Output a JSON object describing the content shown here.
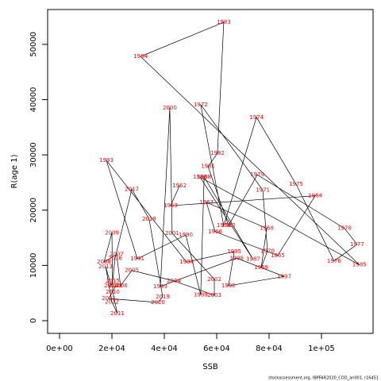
{
  "chart_data": {
    "type": "line",
    "xlabel": "SSB",
    "ylabel": "R(age 1)",
    "footnote": "stockassessment.org, IBPFAR2020_COD_an001, r16451",
    "label_color": "#ff0000",
    "line_color": "#000000",
    "xlim": [
      -4545,
      119700
    ],
    "ylim": [
      -2300,
      56300
    ],
    "xticks": [
      {
        "value": 0,
        "label": "0e+00"
      },
      {
        "value": 20000,
        "label": "2e+04"
      },
      {
        "value": 40000,
        "label": "4e+04"
      },
      {
        "value": 60000,
        "label": "6e+04"
      },
      {
        "value": 80000,
        "label": "8e+04"
      },
      {
        "value": 100000,
        "label": "1e+05"
      }
    ],
    "yticks": [
      0,
      10000,
      20000,
      30000,
      40000,
      50000
    ],
    "labels": [
      "1962",
      "1963",
      "1964",
      "1965",
      "1966",
      "1967",
      "1968",
      "1969",
      "1970",
      "1971",
      "1972",
      "1973",
      "1974",
      "1975",
      "1976",
      "1977",
      "1978",
      "1979",
      "1980",
      "1981",
      "1982",
      "1983",
      "1984",
      "1985",
      "1986",
      "1987",
      "1988",
      "1989",
      "1990",
      "1991",
      "1993",
      "1994",
      "1995",
      "1996",
      "1997",
      "1998",
      "1999",
      "2000",
      "2001",
      "2002",
      "2003",
      "2004",
      "2005",
      "2006",
      "2007",
      "2008",
      "2009",
      "2010",
      "2011",
      "2012",
      "2013",
      "2014",
      "2015",
      "2016",
      "2017",
      "2018",
      "2019",
      "2020",
      "2021",
      "2022"
    ],
    "x": [
      45800,
      42400,
      97600,
      83300,
      59400,
      56100,
      79100,
      77000,
      79400,
      77600,
      53900,
      62700,
      75200,
      90300,
      104800,
      113600,
      108800,
      75500,
      64500,
      56700,
      60300,
      62700,
      30900,
      114500,
      53600,
      73900,
      55200,
      53900,
      48200,
      29700,
      17900,
      48500,
      66700,
      64500,
      85800,
      67600,
      38500,
      42100,
      43000,
      59100,
      59100,
      43600,
      27600,
      23300,
      21800,
      17000,
      20000,
      20300,
      22100,
      20000,
      17600,
      19700,
      20300,
      21200,
      27600,
      34200,
      39400,
      37600,
      18800,
      21500
    ],
    "values": [
      24400,
      20800,
      22600,
      11800,
      16100,
      21400,
      16700,
      9600,
      12600,
      23600,
      39100,
      17200,
      36800,
      24700,
      10800,
      13800,
      16700,
      26400,
      17200,
      27900,
      30300,
      54000,
      47800,
      10100,
      26000,
      11100,
      26000,
      4700,
      15500,
      11200,
      29000,
      10600,
      12500,
      6300,
      8000,
      11300,
      6200,
      38500,
      15800,
      7500,
      4600,
      7200,
      9100,
      6300,
      12000,
      10600,
      15900,
      5200,
      1300,
      3400,
      9800,
      6300,
      7200,
      11300,
      23800,
      18400,
      4300,
      3300,
      4000,
      6300
    ]
  }
}
